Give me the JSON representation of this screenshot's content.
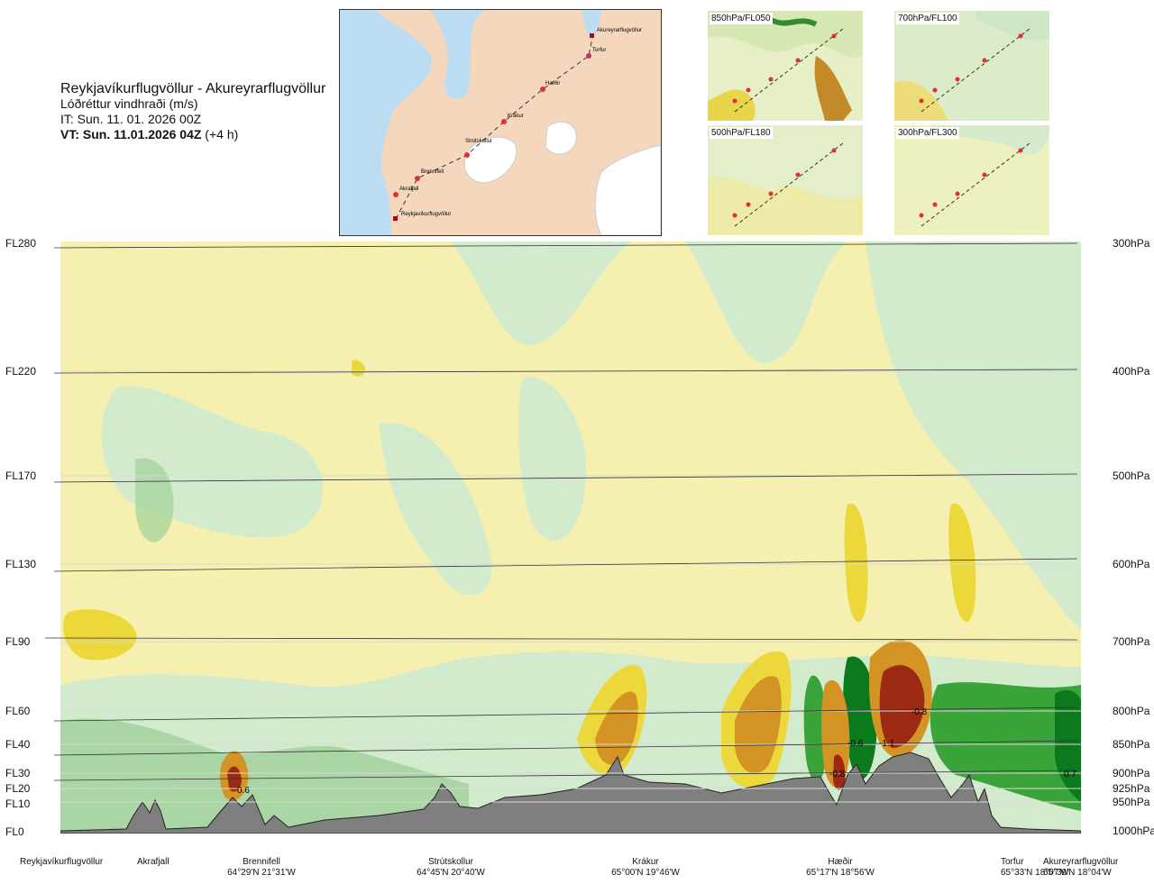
{
  "header": {
    "route": "Reykjavíkurflugvöllur - Akureyrarflugvöllur",
    "quantity": "Lóðréttur vindhraði (m/s)",
    "it_line": "IT: Sun. 11. 01. 2026 00Z",
    "vt_bold": "VT: Sun. 11.01.2026 04Z",
    "vt_offset": " (+4 h)"
  },
  "map": {
    "points": [
      "Akureyrarflugvöllur",
      "Torfur",
      "Hæðir",
      "Krákur",
      "Strútskollur",
      "Brennifell",
      "Akrafjall",
      "Reykjavíkurflugvöllur"
    ]
  },
  "mini_maps": [
    {
      "label": "850hPa/FL050"
    },
    {
      "label": "700hPa/FL100"
    },
    {
      "label": "500hPa/FL180"
    },
    {
      "label": "300hPa/FL300"
    }
  ],
  "chart_data": {
    "type": "heatmap",
    "title": "Lóðréttur vindhraði (m/s)",
    "left_axis": [
      "FL280",
      "FL220",
      "FL170",
      "FL130",
      "FL90",
      "FL60",
      "FL40",
      "FL30",
      "FL20",
      "FL10",
      "FL0"
    ],
    "right_axis": [
      "300hPa",
      "400hPa",
      "500hPa",
      "600hPa",
      "700hPa",
      "800hPa",
      "850hPa",
      "900hPa",
      "925hPa",
      "950hPa",
      "1000hPa"
    ],
    "waypoints": [
      {
        "name": "Reykjavíkurflugvöllur",
        "coord": ""
      },
      {
        "name": "Akrafjall",
        "coord": ""
      },
      {
        "name": "Brennifell",
        "coord": "64°29'N 21°31'W"
      },
      {
        "name": "Strútskollur",
        "coord": "64°45'N 20°40'W"
      },
      {
        "name": "Krákur",
        "coord": "65°00'N 19°46'W"
      },
      {
        "name": "Hæðir",
        "coord": "65°17'N 18°56'W"
      },
      {
        "name": "Torfur",
        "coord": "65°33'N 18°07'W"
      },
      {
        "name": "Akureyrarflugvöllur",
        "coord": "65°39'N 18°04'W"
      }
    ],
    "annotations": [
      "0.6",
      "-0.8",
      "-0.6",
      "-1.1",
      "-0.8",
      "0.7"
    ],
    "colors": {
      "down_light": "#f5f0b0",
      "down_mid": "#ecd83a",
      "down_strong": "#d39424",
      "down_max": "#9c2a12",
      "up_light": "#d3ebcd",
      "up_mid": "#9fd19a",
      "up_strong": "#3aa33a",
      "up_max": "#0b7a1c",
      "terrain": "#7f7f7f"
    }
  }
}
